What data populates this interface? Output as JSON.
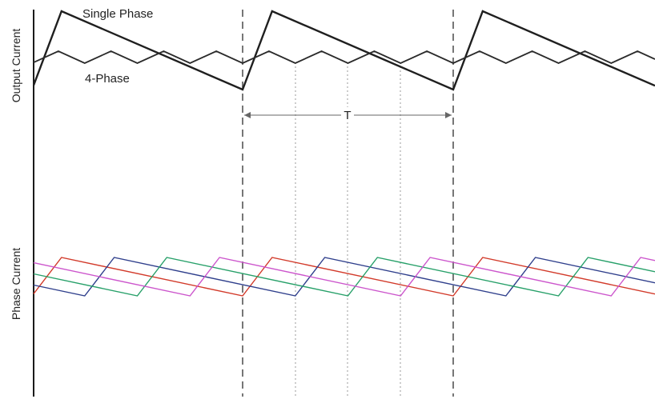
{
  "labels": {
    "single_phase": "Single Phase",
    "four_phase": "4-Phase",
    "y_top": "Output Current",
    "y_bottom": "Phase Current",
    "period": "T"
  },
  "colors": {
    "single_phase": "#1f1f1f",
    "four_phase": "#2a2a2a",
    "guides": "#555555",
    "phase_1": "#d23a2a",
    "phase_2": "#2f3f8c",
    "phase_3": "#27a069",
    "phase_4": "#cc55cc"
  },
  "diagram": {
    "period_count": 3,
    "phase_count": 4,
    "sawtooth_rise_fraction": 0.14
  }
}
